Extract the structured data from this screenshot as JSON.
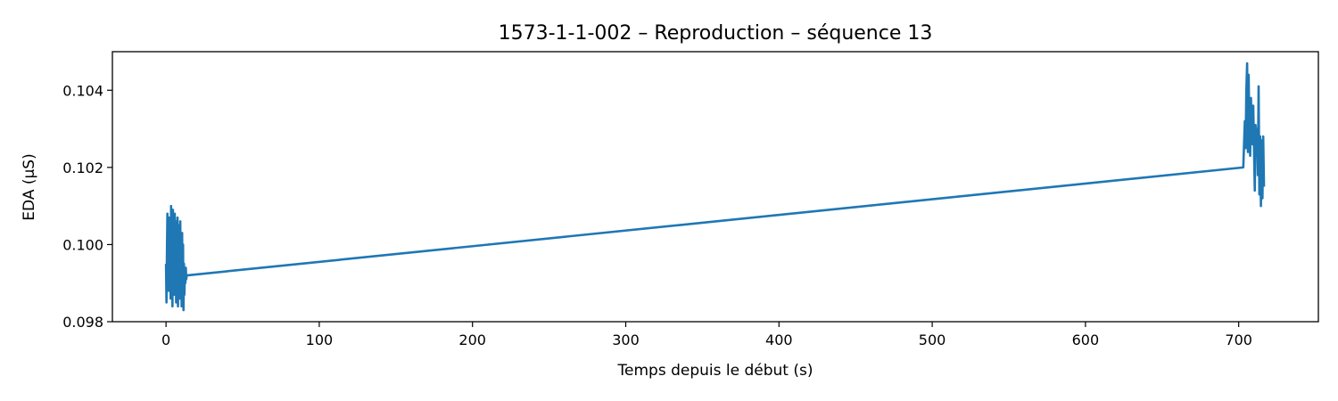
{
  "chart_data": {
    "type": "line",
    "title": "1573-1-1-002 – Reproduction – séquence 13",
    "xlabel": "Temps depuis le début (s)",
    "ylabel": "EDA (µS)",
    "xlim": [
      -35,
      752
    ],
    "ylim": [
      0.098,
      0.105
    ],
    "xticks": [
      0,
      100,
      200,
      300,
      400,
      500,
      600,
      700
    ],
    "yticks": [
      0.098,
      0.1,
      0.102,
      0.104
    ],
    "ytick_labels": [
      "0.098",
      "0.100",
      "0.102",
      "0.104"
    ],
    "grid": false,
    "line_color": "#1f77b4",
    "series": [
      {
        "x": [
          0.0,
          0.3,
          0.6,
          0.9,
          1.2,
          1.5,
          1.8,
          2.1,
          2.4,
          2.7,
          3.0,
          3.3,
          3.6,
          3.9,
          4.2,
          4.5,
          4.8,
          5.1,
          5.4,
          5.7,
          6.0,
          6.3,
          6.6,
          6.9,
          7.2,
          7.5,
          7.8,
          8.1,
          8.4,
          8.7,
          9.0,
          9.3,
          9.6,
          9.9,
          10.2,
          10.5,
          10.8,
          11.1,
          11.4,
          11.7,
          12.0,
          12.3,
          12.6,
          12.9,
          13.2,
          13.5,
          703.0,
          703.5,
          704.0,
          704.5,
          705.0,
          705.5,
          706.0,
          706.5,
          707.0,
          707.5,
          708.0,
          708.5,
          709.0,
          709.5,
          710.0,
          710.5,
          711.0,
          711.5,
          712.0,
          712.5,
          713.0,
          713.5,
          714.0,
          714.5,
          715.0,
          715.5,
          716.0,
          716.5
        ],
        "y": [
          0.0995,
          0.0985,
          0.0998,
          0.1008,
          0.0991,
          0.1001,
          0.0988,
          0.1007,
          0.0993,
          0.1004,
          0.0986,
          0.101,
          0.0992,
          0.1,
          0.0984,
          0.1009,
          0.0995,
          0.1003,
          0.0987,
          0.1008,
          0.099,
          0.1006,
          0.0985,
          0.1002,
          0.0996,
          0.1007,
          0.0984,
          0.1005,
          0.0989,
          0.1,
          0.0986,
          0.1006,
          0.0991,
          0.0998,
          0.0984,
          0.1003,
          0.099,
          0.1,
          0.0983,
          0.0995,
          0.0987,
          0.0993,
          0.099,
          0.0994,
          0.0991,
          0.0992,
          0.102,
          0.1026,
          0.1032,
          0.1025,
          0.104,
          0.1047,
          0.1024,
          0.1044,
          0.1028,
          0.1023,
          0.1038,
          0.103,
          0.1026,
          0.1036,
          0.1025,
          0.1014,
          0.1031,
          0.1024,
          0.103,
          0.1018,
          0.1041,
          0.1013,
          0.1028,
          0.101,
          0.1027,
          0.1012,
          0.1028,
          0.1015
        ]
      }
    ]
  }
}
